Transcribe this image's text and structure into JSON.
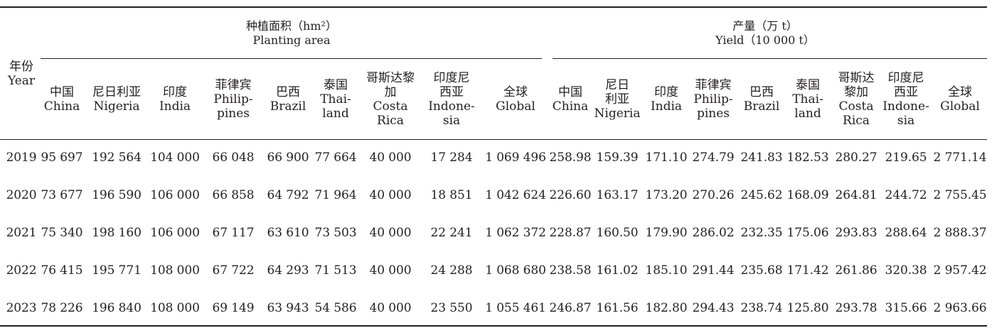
{
  "group_headers": [
    {
      "zh": "种植面积（hm²）",
      "en": "Planting area"
    },
    {
      "zh": "产量（万 t）",
      "en": "Yield（10 000 t）"
    }
  ],
  "year_header": {
    "zh": "年份",
    "en": "Year"
  },
  "columns": [
    {
      "lines": [
        "中国",
        "China"
      ]
    },
    {
      "lines": [
        "尼日利亚",
        "Nigeria"
      ]
    },
    {
      "lines": [
        "印度",
        "India"
      ]
    },
    {
      "lines": [
        "菲律宾",
        "Philip-",
        "pines"
      ]
    },
    {
      "lines": [
        "巴西",
        "Brazil"
      ]
    },
    {
      "lines": [
        "泰国",
        "Thai-",
        "land"
      ]
    },
    {
      "lines": [
        "哥斯达黎",
        "加",
        "Costa",
        "Rica"
      ]
    },
    {
      "lines": [
        "印度尼",
        "西亚",
        "Indone-",
        "sia"
      ]
    },
    {
      "lines": [
        "全球",
        "Global"
      ]
    },
    {
      "lines": [
        "中国",
        "China"
      ]
    },
    {
      "lines": [
        "尼日",
        "利亚",
        "Nigeria"
      ]
    },
    {
      "lines": [
        "印度",
        "India"
      ]
    },
    {
      "lines": [
        "菲律宾",
        "Philip-",
        "pines"
      ]
    },
    {
      "lines": [
        "巴西",
        "Brazil"
      ]
    },
    {
      "lines": [
        "泰国",
        "Thai-",
        "land"
      ]
    },
    {
      "lines": [
        "哥斯达",
        "黎加",
        "Costa",
        "Rica"
      ]
    },
    {
      "lines": [
        "印度尼",
        "西亚",
        "Indone-",
        "sia"
      ]
    },
    {
      "lines": [
        "全球",
        "Global"
      ]
    }
  ],
  "rows": [
    [
      "2019",
      "95 697",
      "192 564",
      "104 000",
      "66 048",
      "66 900",
      "77 664",
      "40 000",
      "17 284",
      "1 069 496",
      "258.98",
      "159.39",
      "171.10",
      "274.79",
      "241.83",
      "182.53",
      "280.27",
      "219.65",
      "2 771.14"
    ],
    [
      "2020",
      "73 677",
      "196 590",
      "106 000",
      "66 858",
      "64 792",
      "71 964",
      "40 000",
      "18 851",
      "1 042 624",
      "226.60",
      "163.17",
      "173.20",
      "270.26",
      "245.62",
      "168.09",
      "264.81",
      "244.72",
      "2 755.45"
    ],
    [
      "2021",
      "75 340",
      "198 160",
      "106 000",
      "67 117",
      "63 610",
      "73 503",
      "40 000",
      "22 241",
      "1 062 372",
      "228.87",
      "160.50",
      "179.90",
      "286.02",
      "232.35",
      "175.06",
      "293.83",
      "288.64",
      "2 888.37"
    ],
    [
      "2022",
      "76 415",
      "195 771",
      "108 000",
      "67 722",
      "64 293",
      "71 513",
      "40 000",
      "24 288",
      "1 068 680",
      "238.58",
      "161.02",
      "185.10",
      "291.44",
      "235.68",
      "171.42",
      "261.86",
      "320.38",
      "2 957.42"
    ],
    [
      "2023",
      "78 226",
      "196 840",
      "108 000",
      "69 149",
      "63 943",
      "54 586",
      "40 000",
      "23 550",
      "1 055 461",
      "246.87",
      "161.56",
      "182.80",
      "294.43",
      "238.74",
      "125.80",
      "293.78",
      "315.66",
      "2 963.66"
    ]
  ]
}
